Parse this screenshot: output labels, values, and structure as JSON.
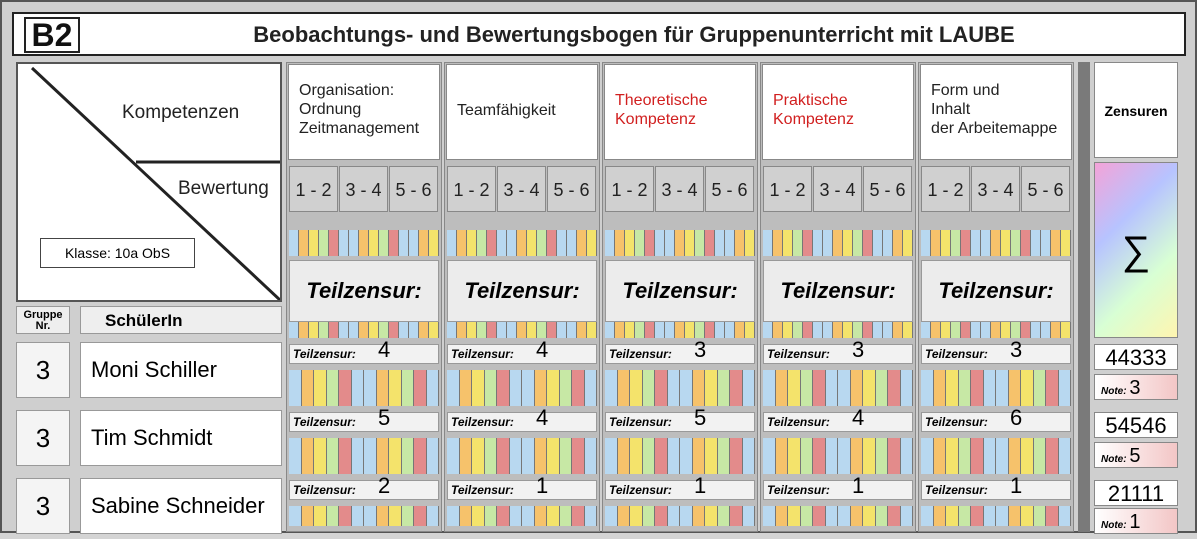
{
  "title": {
    "badge": "B2",
    "text": "Beobachtungs- und Bewertungsbogen für Gruppenunterricht mit  LAUBE"
  },
  "left": {
    "kompetenzen": "Kompetenzen",
    "bewertung": "Bewertung",
    "klasse": "Klasse: 10a ObS",
    "gruppe": "Gruppe Nr.",
    "schueler": "SchülerIn"
  },
  "competencies": [
    {
      "lines": [
        "Organisation:",
        "Ordnung",
        "Zeitmanagement"
      ],
      "color": "#222222"
    },
    {
      "lines": [
        "Teamfähigkeit"
      ],
      "color": "#222222"
    },
    {
      "lines": [
        "Theoretische",
        "Kompetenz"
      ],
      "color": "#d11f1f"
    },
    {
      "lines": [
        "Praktische",
        "Kompetenz"
      ],
      "color": "#d11f1f"
    },
    {
      "lines": [
        "Form und",
        "Inhalt",
        "der Arbeitemappe"
      ],
      "color": "#222222"
    }
  ],
  "grade_ranges": [
    "1 - 2",
    "3 - 4",
    "5 - 6"
  ],
  "teilzensur_label": "Teilzensur:",
  "students": [
    {
      "group": "3",
      "name": "Moni Schiller",
      "grades": [
        "4",
        "4",
        "3",
        "3",
        "3"
      ],
      "sum": "44333",
      "note": "3"
    },
    {
      "group": "3",
      "name": "Tim Schmidt",
      "grades": [
        "5",
        "4",
        "5",
        "4",
        "6"
      ],
      "sum": "54546",
      "note": "5"
    },
    {
      "group": "3",
      "name": "Sabine Schneider",
      "grades": [
        "2",
        "1",
        "1",
        "1",
        "1"
      ],
      "sum": "21111",
      "note": "1"
    }
  ],
  "zensuren": "Zensuren",
  "sigma": "∑",
  "note_label": "Note:",
  "stripe_colors": [
    "#b8d8f0",
    "#f6c26b",
    "#f4e36b",
    "#c7e8a5",
    "#e38b8b",
    "#b8d8f0"
  ]
}
